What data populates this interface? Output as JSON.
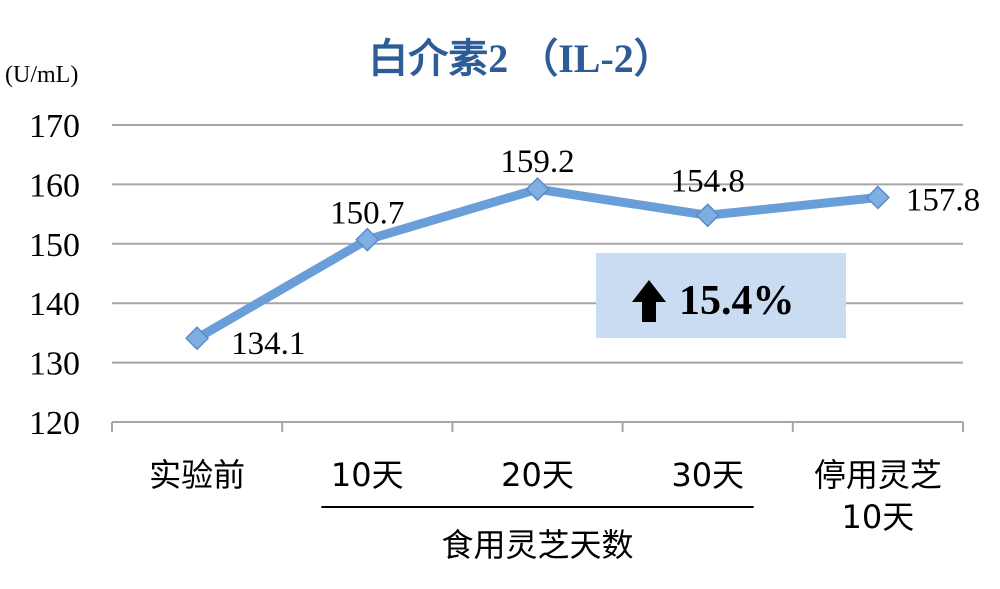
{
  "colors": {
    "title": "#2E5C96",
    "series": "#6A9ED8",
    "marker_fill": "#7FAEE2",
    "grid": "#A6A6A6",
    "callout_bg": "#C9DCF1",
    "text": "#000000"
  },
  "chart_data": {
    "type": "line",
    "title": "白介素2 （IL-2）",
    "unit": "(U/mL)",
    "categories": [
      [
        "实验前"
      ],
      [
        "10天"
      ],
      [
        "20天"
      ],
      [
        "30天"
      ],
      [
        "停用灵芝",
        "10天"
      ]
    ],
    "values": [
      134.1,
      150.7,
      159.2,
      154.8,
      157.8
    ],
    "data_labels": [
      "134.1",
      "150.7",
      "159.2",
      "154.8",
      "157.8"
    ],
    "ylim": [
      120,
      170
    ],
    "yticks": [
      120,
      130,
      140,
      150,
      160,
      170
    ],
    "grid": true,
    "marker": "diamond",
    "group_label": {
      "text": "食用灵芝天数",
      "span": [
        1,
        3
      ]
    },
    "callout": {
      "icon": "up-arrow-icon",
      "text": "15.4%"
    }
  }
}
